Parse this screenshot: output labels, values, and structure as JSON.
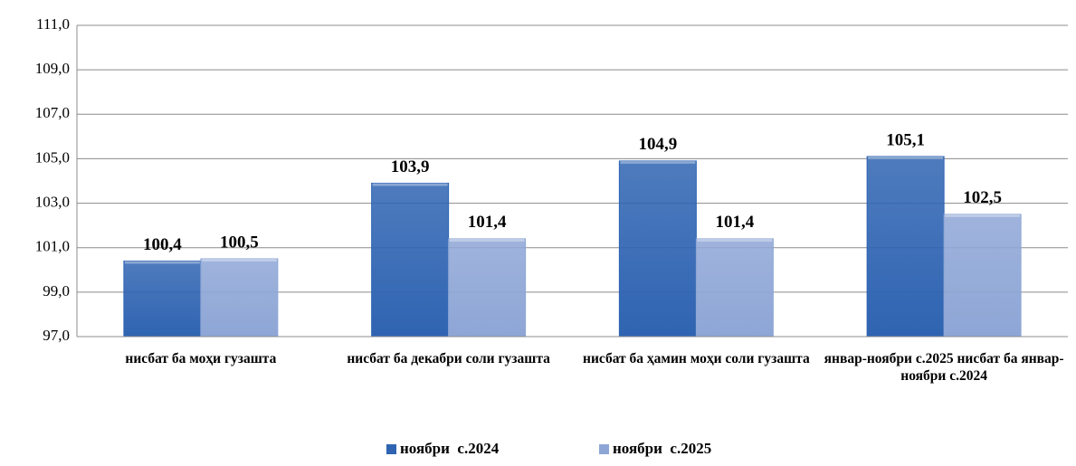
{
  "chart_data": {
    "type": "bar",
    "categories": [
      "нисбат ба моҳи гузашта",
      "нисбат ба декабри соли гузашта",
      "нисбат ба ҳамин моҳи соли гузашта",
      "январ-ноябри  с.2025 нисбат ба январ-ноябри с.2024"
    ],
    "series": [
      {
        "name": "ноябри  с.2024",
        "color": "#2f64b2",
        "values": [
          100.4,
          103.9,
          104.9,
          105.1
        ],
        "value_labels": [
          "100,4",
          "103,9",
          "104,9",
          "105,1"
        ]
      },
      {
        "name": "ноябри  с.2025",
        "color": "#8ea6d6",
        "values": [
          100.5,
          101.4,
          101.4,
          102.5
        ],
        "value_labels": [
          "100,5",
          "101,4",
          "101,4",
          "102,5"
        ]
      }
    ],
    "ylim": [
      97,
      111
    ],
    "yticks": [
      {
        "value": 97,
        "label": "97,0"
      },
      {
        "value": 99,
        "label": "99,0"
      },
      {
        "value": 101,
        "label": "101,0"
      },
      {
        "value": 103,
        "label": "103,0"
      },
      {
        "value": 105,
        "label": "105,0"
      },
      {
        "value": 107,
        "label": "107,0"
      },
      {
        "value": 109,
        "label": "109,0"
      },
      {
        "value": 111,
        "label": "111,0"
      }
    ],
    "grid": true,
    "legend": "bottom"
  }
}
